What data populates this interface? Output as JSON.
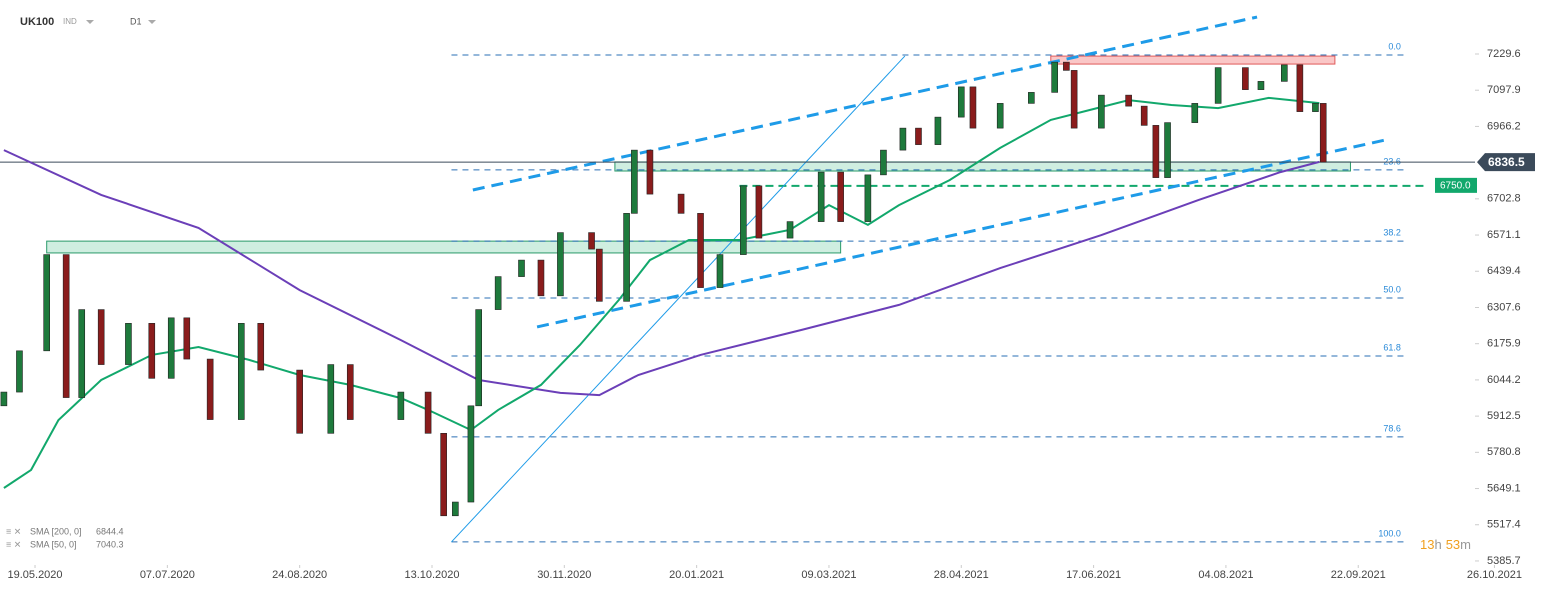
{
  "chart_data": {
    "type": "candlestick",
    "symbol": "UK100",
    "instrument_type": "IND",
    "timeframe": "D1",
    "up_color": "#1e7a3c",
    "down_color": "#8a1c1c",
    "xlim": [
      0,
      379
    ],
    "ylim": [
      5371,
      7426
    ],
    "xticks": [
      {
        "value": 9,
        "label": "19.05.2020"
      },
      {
        "value": 43,
        "label": "07.07.2020"
      },
      {
        "value": 77,
        "label": "24.08.2020"
      },
      {
        "value": 111,
        "label": "13.10.2020"
      },
      {
        "value": 145,
        "label": "30.11.2020"
      },
      {
        "value": 179,
        "label": "20.01.2021"
      },
      {
        "value": 213,
        "label": "09.03.2021"
      },
      {
        "value": 247,
        "label": "28.04.2021"
      },
      {
        "value": 281,
        "label": "17.06.2021"
      },
      {
        "value": 315,
        "label": "04.08.2021"
      },
      {
        "value": 349,
        "label": "22.09.2021"
      },
      {
        "value": 384,
        "label": "26.10.2021"
      }
    ],
    "yticks": [
      7229.6,
      7097.9,
      6966.2,
      6702.8,
      6571.1,
      6439.4,
      6307.6,
      6175.9,
      6044.2,
      5912.5,
      5780.8,
      5649.1,
      5517.4,
      5385.7
    ],
    "x": [
      1,
      5,
      12,
      17,
      21,
      26,
      33,
      39,
      44,
      48,
      54,
      62,
      67,
      77,
      85,
      90,
      103,
      110,
      114,
      117,
      121,
      123,
      128,
      134,
      139,
      144,
      152,
      154,
      161,
      163,
      167,
      175,
      180,
      185,
      191,
      195,
      203,
      211,
      216,
      223,
      227,
      232,
      236,
      241,
      247,
      250,
      257,
      265,
      271,
      274,
      276,
      283,
      290,
      294,
      297,
      300,
      307,
      313,
      320,
      324,
      330,
      334,
      338,
      340
    ],
    "open": [
      5950,
      6000,
      6150,
      6500,
      5980,
      6300,
      6100,
      6250,
      6050,
      6270,
      6120,
      5900,
      6250,
      6080,
      5850,
      6100,
      5900,
      6000,
      5850,
      5550,
      5600,
      5950,
      6300,
      6420,
      6480,
      6350,
      6580,
      6520,
      6330,
      6650,
      6880,
      6720,
      6650,
      6380,
      6500,
      6750,
      6560,
      6620,
      6800,
      6620,
      6790,
      6880,
      6960,
      6900,
      7000,
      7110,
      6960,
      7050,
      7090,
      7200,
      7170,
      6960,
      7080,
      7040,
      6970,
      6780,
      6980,
      7050,
      7180,
      7100,
      7130,
      7190,
      7020,
      7050
    ],
    "close": [
      6000,
      6150,
      6500,
      5980,
      6300,
      6100,
      6250,
      6050,
      6270,
      6120,
      5900,
      6250,
      6080,
      5850,
      6100,
      5900,
      6000,
      5850,
      5550,
      5600,
      5950,
      6300,
      6420,
      6480,
      6350,
      6580,
      6520,
      6330,
      6650,
      6880,
      6720,
      6650,
      6380,
      6500,
      6750,
      6560,
      6620,
      6800,
      6620,
      6790,
      6880,
      6960,
      6900,
      7000,
      7110,
      6960,
      7050,
      7090,
      7200,
      7170,
      6960,
      7080,
      7040,
      6970,
      6780,
      6980,
      7050,
      7180,
      7100,
      7130,
      7190,
      7020,
      7050,
      6836.5
    ],
    "last_price": 6836.5,
    "series": [
      {
        "name": "SMA [200, 0]",
        "last_value": 6844.4,
        "color": "#6b3fb8",
        "x": [
          1,
          26,
          51,
          77,
          103,
          123,
          144,
          154,
          164,
          180,
          206,
          231,
          257,
          283,
          308,
          329,
          339
        ],
        "values": [
          6880,
          6717,
          6597,
          6371,
          6189,
          6044,
          5997,
          5989,
          6062,
          6135,
          6226,
          6317,
          6451,
          6571,
          6699,
          6800,
          6837
        ]
      },
      {
        "name": "SMA [50, 0]",
        "last_value": 7040.3,
        "color": "#12a86c",
        "x": [
          1,
          8,
          15,
          26,
          39,
          51,
          64,
          77,
          90,
          103,
          110,
          121,
          128,
          139,
          149,
          159,
          167,
          177,
          190,
          203,
          213,
          223,
          231,
          244,
          257,
          270,
          280,
          290,
          301,
          313,
          326,
          339
        ],
        "values": [
          5651,
          5717,
          5898,
          6044,
          6135,
          6164,
          6117,
          6062,
          6026,
          5978,
          5935,
          5862,
          5935,
          6026,
          6171,
          6335,
          6480,
          6553,
          6553,
          6590,
          6680,
          6608,
          6680,
          6771,
          6888,
          6990,
          7026,
          7062,
          7044,
          7033,
          7070,
          7051
        ]
      }
    ],
    "fib_range": [
      116,
      361
    ],
    "fib_levels": [
      {
        "label": "0.0",
        "value": 7226
      },
      {
        "label": "23.6",
        "value": 6808
      },
      {
        "label": "38.2",
        "value": 6549
      },
      {
        "label": "50.0",
        "value": 6342
      },
      {
        "label": "61.8",
        "value": 6131
      },
      {
        "label": "78.6",
        "value": 5837
      },
      {
        "label": "100.0",
        "value": 5455
      }
    ],
    "zones": [
      {
        "x": [
          270,
          343
        ],
        "y": [
          7193,
          7222
        ],
        "color": "#f8b4b4",
        "stroke": "#e05a5a"
      },
      {
        "x": [
          158,
          347
        ],
        "y": [
          6804,
          6837
        ],
        "color": "#bfe8d6",
        "stroke": "#2a9a6a"
      },
      {
        "x": [
          12,
          216
        ],
        "y": [
          6506,
          6549
        ],
        "color": "#bfe8d6",
        "stroke": "#2a9a6a"
      }
    ],
    "trendlines": [
      {
        "x": [
          121.5,
          323
        ],
        "values": [
          6735,
          7364
        ],
        "style": "dashed"
      },
      {
        "x": [
          138,
          356
        ],
        "values": [
          6237,
          6917
        ],
        "style": "dashed"
      },
      {
        "x": [
          116,
          232.5
        ],
        "values": [
          5455,
          7222
        ],
        "style": "thin"
      }
    ],
    "support": {
      "value": 6750,
      "label": "6750.0",
      "x": [
        190,
        367
      ],
      "color": "#12a86c"
    },
    "countdown": [
      "13",
      "h",
      "53",
      "m"
    ]
  }
}
